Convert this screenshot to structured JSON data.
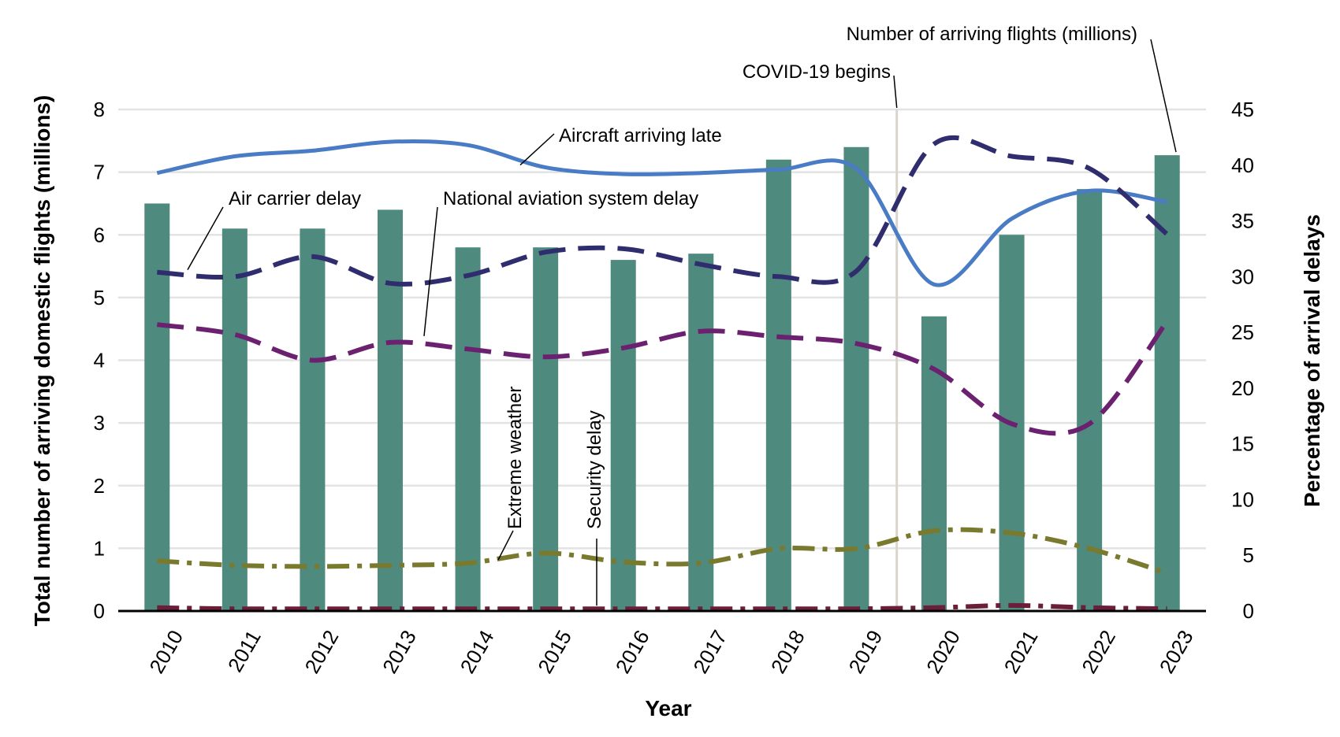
{
  "chart_data": {
    "type": "bar+line",
    "xlabel": "Year",
    "ylabel_left": "Total number of arriving domestic flights (millions)",
    "ylabel_right": "Percentage of arrival delays",
    "ylim_left": [
      0,
      8
    ],
    "ylim_right": [
      0,
      45
    ],
    "yticks_left": [
      0,
      1,
      2,
      3,
      4,
      5,
      6,
      7,
      8
    ],
    "yticks_right": [
      0,
      5,
      10,
      15,
      20,
      25,
      30,
      35,
      40,
      45
    ],
    "categories": [
      "2010",
      "2011",
      "2012",
      "2013",
      "2014",
      "2015",
      "2016",
      "2017",
      "2018",
      "2019",
      "2020",
      "2021",
      "2022",
      "2023"
    ],
    "bars": {
      "name": "Number of arriving flights (millions)",
      "axis": "left",
      "color": "#4e8a7e",
      "values": [
        6.5,
        6.1,
        6.1,
        6.4,
        5.8,
        5.8,
        5.6,
        5.7,
        7.2,
        7.4,
        4.7,
        6.0,
        6.73,
        7.27
      ]
    },
    "series": [
      {
        "name": "Aircraft arriving late",
        "axis": "right",
        "style": "solid",
        "color": "#4a7cc5",
        "values": [
          39.3,
          40.8,
          41.3,
          42.1,
          41.8,
          39.8,
          39.2,
          39.3,
          39.6,
          39.7,
          29.3,
          35.2,
          37.7,
          36.7
        ]
      },
      {
        "name": "Air carrier delay",
        "axis": "right",
        "style": "dashed",
        "color": "#2f2d6e",
        "values": [
          30.4,
          30.0,
          31.8,
          29.4,
          30.1,
          32.2,
          32.5,
          31.1,
          30.0,
          30.5,
          41.9,
          40.8,
          39.7,
          33.8
        ]
      },
      {
        "name": "National aviation system delay",
        "axis": "right",
        "style": "dashed",
        "color": "#6b2170",
        "values": [
          25.7,
          24.8,
          22.5,
          24.1,
          23.5,
          22.8,
          23.6,
          25.1,
          24.6,
          24.0,
          21.7,
          16.8,
          16.8,
          26.0
        ]
      },
      {
        "name": "Extreme weather",
        "axis": "right",
        "style": "dashdot",
        "color": "#7a7a2e",
        "values": [
          4.5,
          4.1,
          4.0,
          4.1,
          4.3,
          5.2,
          4.4,
          4.3,
          5.6,
          5.6,
          7.2,
          7.0,
          5.6,
          3.4
        ]
      },
      {
        "name": "Security delay",
        "axis": "right",
        "style": "dashdot",
        "color": "#6b1e3a",
        "values": [
          0.3,
          0.2,
          0.2,
          0.2,
          0.2,
          0.2,
          0.2,
          0.2,
          0.2,
          0.2,
          0.3,
          0.5,
          0.3,
          0.2
        ]
      }
    ],
    "annotations": [
      {
        "text": "Number of arriving flights (millions)",
        "target": "bars"
      },
      {
        "text": "COVID-19 begins",
        "target": "2020"
      },
      {
        "text": "Aircraft arriving late",
        "target": "Aircraft arriving late"
      },
      {
        "text": "Air carrier delay",
        "target": "Air carrier delay"
      },
      {
        "text": "National aviation system delay",
        "target": "National aviation system delay"
      },
      {
        "text": "Extreme weather",
        "target": "Extreme weather"
      },
      {
        "text": "Security delay",
        "target": "Security delay"
      }
    ],
    "grid": "horizontal",
    "covid_marker_year": "2020"
  }
}
